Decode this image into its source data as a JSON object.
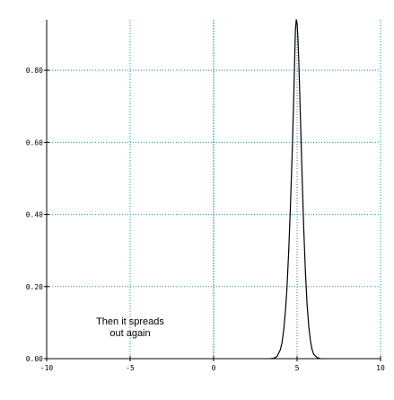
{
  "chart_data": {
    "type": "line",
    "title": "",
    "xlabel": "",
    "ylabel": "",
    "xlim": [
      -10,
      10
    ],
    "ylim": [
      0,
      0.94
    ],
    "x_ticks": [
      -10,
      -5,
      0,
      5,
      10
    ],
    "x_tick_labels": [
      "-10",
      "-5",
      "0",
      "5",
      "10"
    ],
    "y_ticks": [
      0.0,
      0.2,
      0.4,
      0.6,
      0.8
    ],
    "y_tick_labels": [
      "0.00",
      "0.20",
      "0.40",
      "0.60",
      "0.80"
    ],
    "grid": true,
    "grid_style": "dotted",
    "grid_color": "#1a8fa8",
    "zero_line": {
      "axis": "x",
      "value": 0,
      "color": "#1a8fa8"
    },
    "series": [
      {
        "color": "#000000",
        "points": [
          [
            3.4,
            0.0
          ],
          [
            3.6,
            0.001
          ],
          [
            3.8,
            0.006
          ],
          [
            4.0,
            0.025
          ],
          [
            4.1,
            0.045
          ],
          [
            4.2,
            0.08
          ],
          [
            4.3,
            0.13
          ],
          [
            4.4,
            0.2
          ],
          [
            4.5,
            0.3
          ],
          [
            4.6,
            0.42
          ],
          [
            4.7,
            0.56
          ],
          [
            4.8,
            0.72
          ],
          [
            4.85,
            0.82
          ],
          [
            4.9,
            0.91
          ],
          [
            4.95,
            0.94
          ],
          [
            5.0,
            0.93
          ],
          [
            5.05,
            0.89
          ],
          [
            5.1,
            0.83
          ],
          [
            5.2,
            0.67
          ],
          [
            5.3,
            0.51
          ],
          [
            5.4,
            0.36
          ],
          [
            5.5,
            0.24
          ],
          [
            5.6,
            0.15
          ],
          [
            5.7,
            0.09
          ],
          [
            5.8,
            0.05
          ],
          [
            5.9,
            0.025
          ],
          [
            6.0,
            0.012
          ],
          [
            6.2,
            0.003
          ],
          [
            6.4,
            0.0
          ]
        ]
      }
    ],
    "annotations": [
      {
        "text": "Then it spreads out again",
        "x": -5,
        "y": 0.095
      }
    ]
  }
}
